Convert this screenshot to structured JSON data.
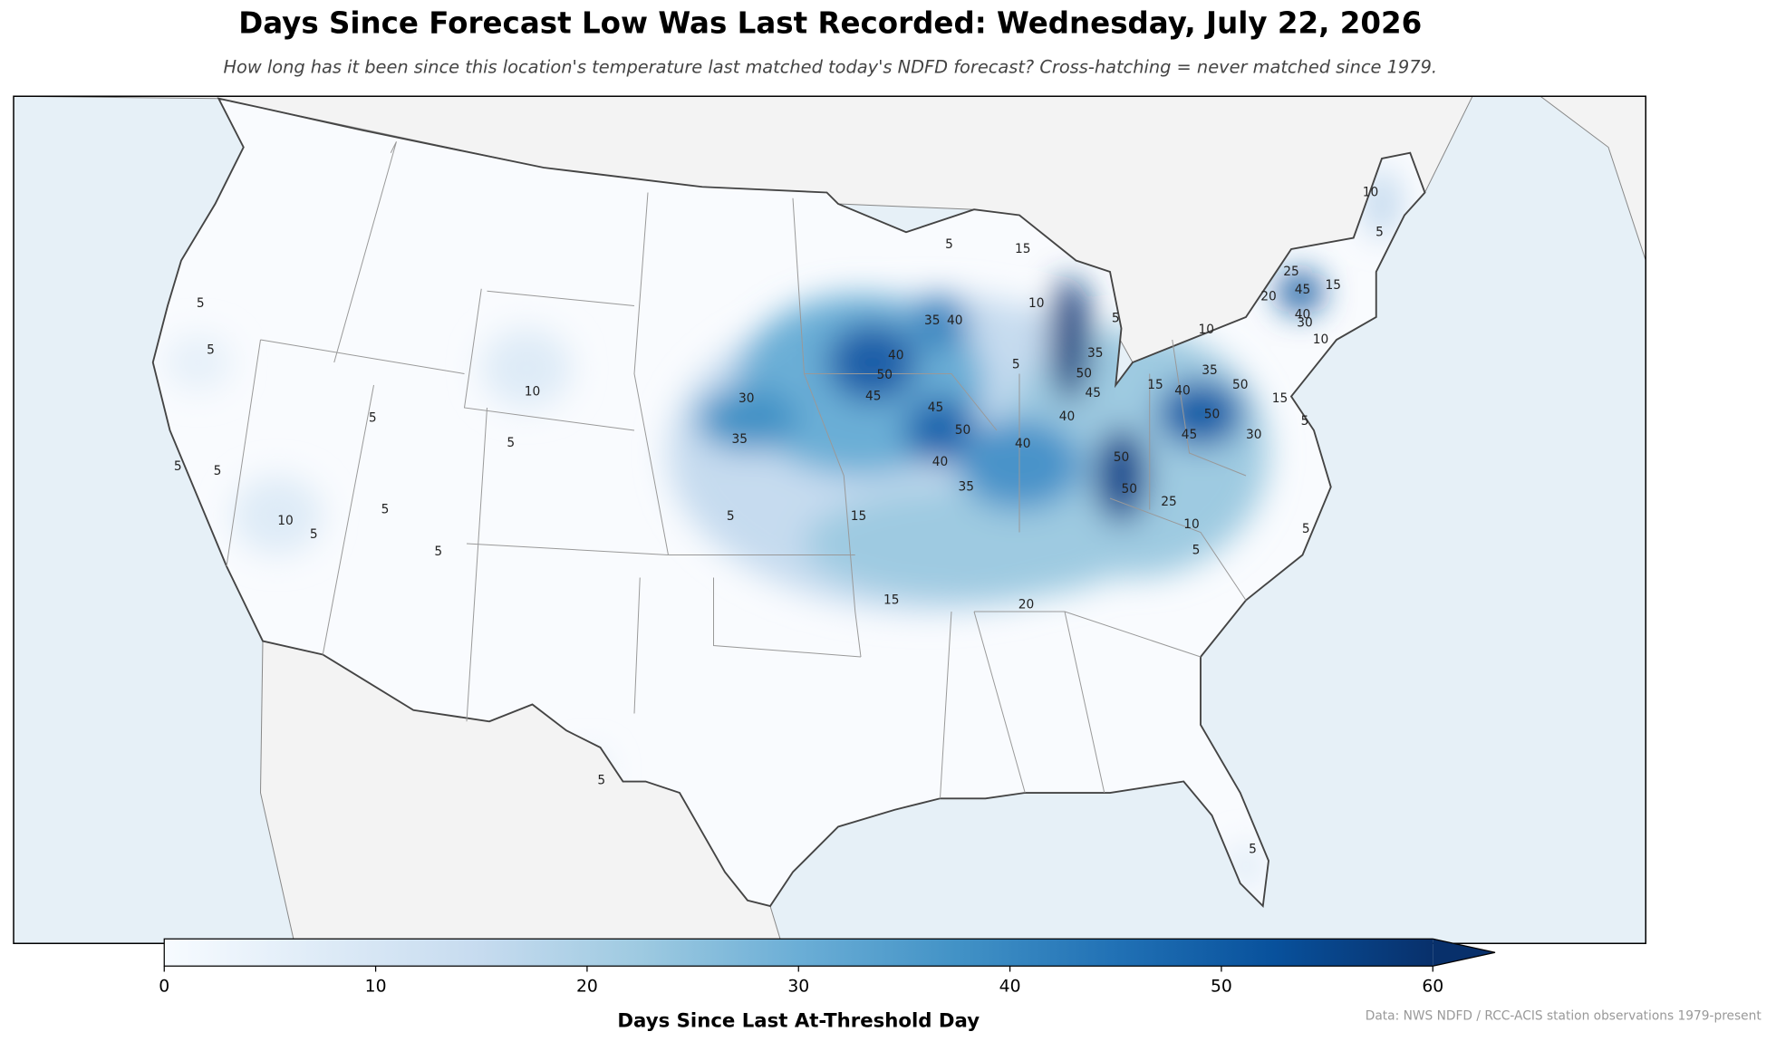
{
  "chart_data": {
    "type": "map",
    "title": "Days Since Forecast Low Was Last Recorded: Wednesday, July 22, 2026",
    "subtitle": "How long has it been since this location's temperature last matched today's NDFD forecast? Cross-hatching = never matched since 1979.",
    "colorbar": {
      "label": "Days Since Last At-Threshold Day",
      "lim": [
        0,
        60
      ],
      "ticks": [
        0,
        10,
        20,
        30,
        40,
        50,
        60
      ],
      "colors": [
        "#f7fbff",
        "#deebf7",
        "#c6dbef",
        "#9ecae1",
        "#6baed6",
        "#4292c6",
        "#2171b5",
        "#08519c",
        "#08306b"
      ]
    },
    "contour_labels": [
      5,
      5,
      5,
      5,
      10,
      5,
      10,
      5,
      5,
      5,
      5,
      30,
      35,
      5,
      15,
      15,
      40,
      50,
      45,
      35,
      40,
      5,
      15,
      45,
      50,
      40,
      35,
      40,
      10,
      5,
      35,
      50,
      45,
      40,
      50,
      50,
      25,
      10,
      5,
      20,
      10,
      5,
      25,
      45,
      15,
      40,
      30,
      10,
      20,
      10,
      15,
      40,
      35,
      50,
      45,
      50,
      30,
      15,
      5,
      5,
      5,
      5,
      5
    ],
    "source": "Data: NWS NDFD / RCC-ACIS station observations 1979-present"
  }
}
